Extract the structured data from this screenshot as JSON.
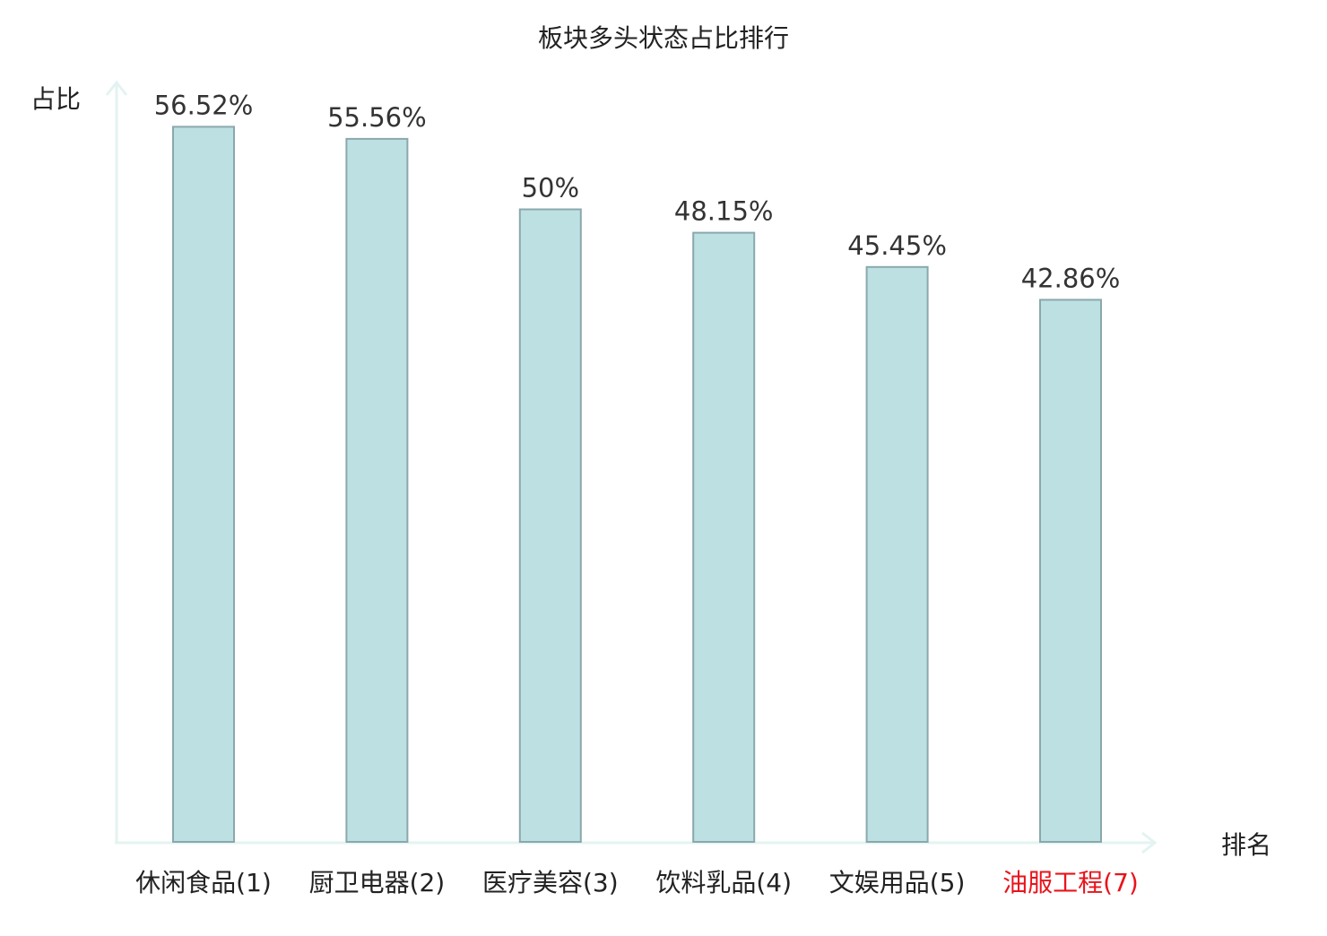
{
  "chart_data": {
    "type": "bar",
    "title": "板块多头状态占比排行",
    "ylabel": "占比",
    "xlabel": "排名",
    "categories": [
      "休闲食品(1)",
      "厨卫电器(2)",
      "医疗美容(3)",
      "饮料乳品(4)",
      "文娱用品(5)",
      "油服工程(7)"
    ],
    "values": [
      56.52,
      55.56,
      50,
      48.15,
      45.45,
      42.86
    ],
    "value_labels": [
      "56.52%",
      "55.56%",
      "50%",
      "48.15%",
      "45.45%",
      "42.86%"
    ],
    "highlight_category_index": 5,
    "ylim": [
      0,
      60
    ],
    "grid": false,
    "legend": "none"
  },
  "colors": {
    "bar_fill": "#bde0e3",
    "bar_stroke": "#8aa8ac",
    "axis": "#e3f3f1",
    "label_text": "#333333",
    "title_text": "#222222",
    "highlight_text": "#e8141b"
  }
}
